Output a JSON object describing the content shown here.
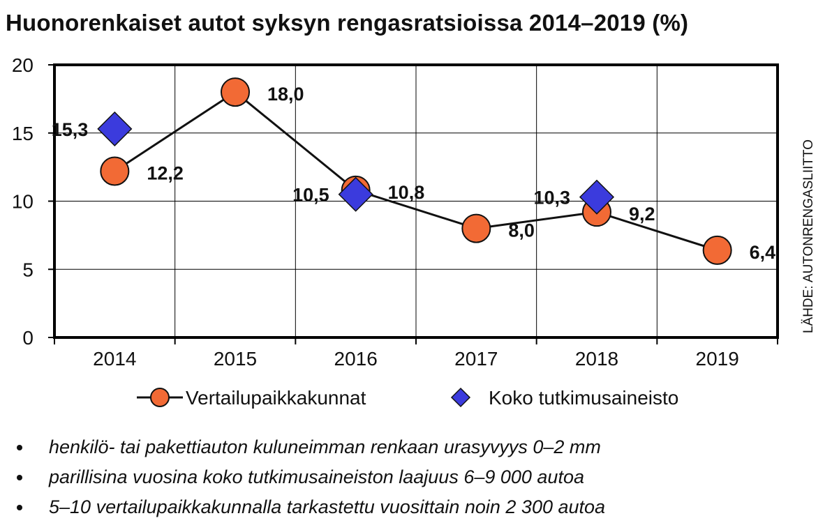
{
  "chart_data": {
    "type": "line",
    "title": "Huonorenkaiset autot syksyn rengasratsioissa 2014–2019 (%)",
    "source": "LÄHDE: AUTONRENGASLIITTO",
    "categories": [
      "2014",
      "2015",
      "2016",
      "2017",
      "2018",
      "2019"
    ],
    "ylim": [
      0,
      20
    ],
    "yticks": [
      0,
      5,
      10,
      15,
      20
    ],
    "grid": true,
    "legend_position": "bottom",
    "series": [
      {
        "name": "Vertailupaikkakunnat",
        "marker": "circle",
        "line": true,
        "color": "#f26a35",
        "values": [
          12.2,
          18.0,
          10.8,
          8.0,
          9.2,
          6.4
        ],
        "labels": [
          "12,2",
          "18,0",
          "10,8",
          "8,0",
          "9,2",
          "6,4"
        ]
      },
      {
        "name": "Koko tutkimusaineisto",
        "marker": "diamond",
        "line": false,
        "color": "#3b3bdd",
        "values": [
          15.3,
          null,
          10.5,
          null,
          10.3,
          null
        ],
        "labels": [
          "15,3",
          null,
          "10,5",
          null,
          "10,3",
          null
        ]
      }
    ]
  },
  "notes": [
    "henkilö- tai pakettiauton kuluneimman renkaan urasyvyys 0–2 mm",
    "parillisina vuosina koko tutkimusaineiston laajuus 6–9 000 autoa",
    "5–10 vertailupaikkakunnalla tarkastettu vuosittain noin 2 300 autoa"
  ]
}
